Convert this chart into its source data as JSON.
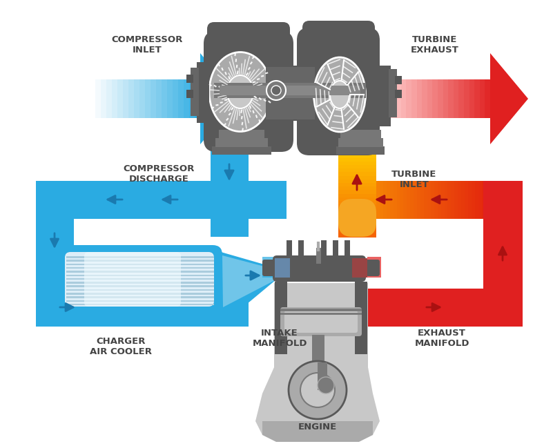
{
  "bg_color": "#ffffff",
  "blue": "#2AABE2",
  "blue_dark": "#1A7AAF",
  "blue_light": "#8DD8F0",
  "red": "#E02020",
  "red_dark": "#AA1111",
  "orange": "#F5A623",
  "orange_dark": "#E07010",
  "dark_gray": "#595959",
  "med_gray": "#7A7A7A",
  "light_gray": "#AAAAAA",
  "lighter_gray": "#C8C8C8",
  "white": "#FFFFFF",
  "labels": {
    "compressor_inlet": "COMPRESSOR\nINLET",
    "turbine_exhaust": "TURBINE\nEXHAUST",
    "compressor_discharge": "COMPRESSOR\nDISCHARGE",
    "turbine_inlet": "TURBINE\nINLET",
    "charger_air_cooler": "CHARGER\nAIR COOLER",
    "intake_manifold": "INTAKE\nMANIFOLD",
    "exhaust_manifold": "EXHAUST\nMANIFOLD",
    "engine": "ENGINE"
  },
  "pipe_thickness": 55,
  "label_fontsize": 9.5,
  "label_color": "#444444"
}
